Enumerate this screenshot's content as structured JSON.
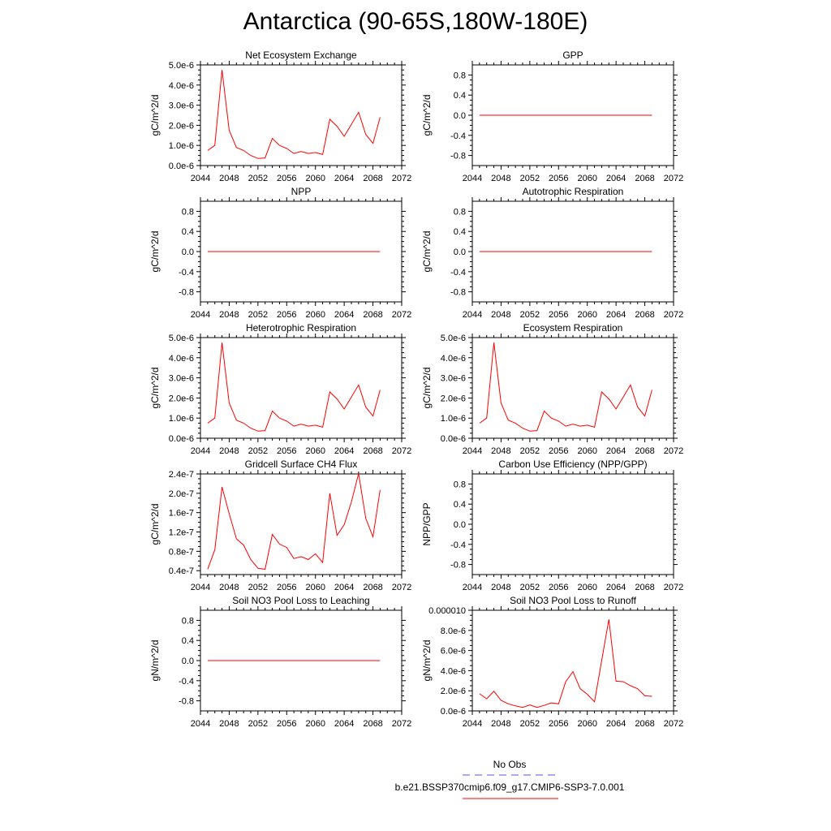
{
  "figure": {
    "title": "Antarctica (90-65S,180W-180E)",
    "legend": {
      "entries": [
        {
          "label": "No Obs",
          "color": "#5a5ad8",
          "style": "dashed"
        },
        {
          "label": "b.e21.BSSP370cmip6.f09_g17.CMIP6-SSP3-7.0.001",
          "color": "#ff0000",
          "style": "solid"
        }
      ]
    },
    "line_color": "#ff0000"
  },
  "chart_data": [
    {
      "type": "line",
      "title": "Net Ecosystem Exchange",
      "ylabel": "gC/m^2/d",
      "xlim": [
        2044,
        2072
      ],
      "xticks": [
        2044,
        2048,
        2052,
        2056,
        2060,
        2064,
        2068,
        2072
      ],
      "ylim": [
        0,
        5e-06
      ],
      "yticks": [
        0,
        1e-06,
        2e-06,
        3e-06,
        4e-06,
        5e-06
      ],
      "ytick_labels": [
        "0.0e-6",
        "1.0e-6",
        "2.0e-6",
        "3.0e-6",
        "4.0e-6",
        "5.0e-6"
      ],
      "x": [
        2045,
        2046,
        2047,
        2048,
        2049,
        2050,
        2051,
        2052,
        2053,
        2054,
        2055,
        2056,
        2057,
        2058,
        2059,
        2060,
        2061,
        2062,
        2063,
        2064,
        2065,
        2066,
        2067,
        2068,
        2069
      ],
      "series": [
        {
          "values": [
            7.5e-07,
            1e-06,
            4.75e-06,
            1.75e-06,
            9e-07,
            7.5e-07,
            5e-07,
            3.5e-07,
            3.8e-07,
            1.35e-06,
            1e-06,
            8.5e-07,
            6e-07,
            7e-07,
            6e-07,
            6.5e-07,
            5.5e-07,
            2.3e-06,
            1.95e-06,
            1.45e-06,
            2.05e-06,
            2.65e-06,
            1.55e-06,
            1.1e-06,
            2.4e-06
          ]
        }
      ]
    },
    {
      "type": "line",
      "title": "GPP",
      "ylabel": "gC/m^2/d",
      "xlim": [
        2044,
        2072
      ],
      "xticks": [
        2044,
        2048,
        2052,
        2056,
        2060,
        2064,
        2068,
        2072
      ],
      "ylim": [
        -1.0,
        1.0
      ],
      "yticks": [
        -0.8,
        -0.4,
        0.0,
        0.4,
        0.8
      ],
      "ytick_labels": [
        "-0.8",
        "-0.4",
        "0.0",
        "0.4",
        "0.8"
      ],
      "x": [
        2045,
        2069
      ],
      "series": [
        {
          "values": [
            0,
            0
          ]
        }
      ]
    },
    {
      "type": "line",
      "title": "NPP",
      "ylabel": "gC/m^2/d",
      "xlim": [
        2044,
        2072
      ],
      "xticks": [
        2044,
        2048,
        2052,
        2056,
        2060,
        2064,
        2068,
        2072
      ],
      "ylim": [
        -1.0,
        1.0
      ],
      "yticks": [
        -0.8,
        -0.4,
        0.0,
        0.4,
        0.8
      ],
      "ytick_labels": [
        "-0.8",
        "-0.4",
        "0.0",
        "0.4",
        "0.8"
      ],
      "x": [
        2045,
        2069
      ],
      "series": [
        {
          "values": [
            0,
            0
          ]
        }
      ]
    },
    {
      "type": "line",
      "title": "Autotrophic Respiration",
      "ylabel": "gC/m^2/d",
      "xlim": [
        2044,
        2072
      ],
      "xticks": [
        2044,
        2048,
        2052,
        2056,
        2060,
        2064,
        2068,
        2072
      ],
      "ylim": [
        -1.0,
        1.0
      ],
      "yticks": [
        -0.8,
        -0.4,
        0.0,
        0.4,
        0.8
      ],
      "ytick_labels": [
        "-0.8",
        "-0.4",
        "0.0",
        "0.4",
        "0.8"
      ],
      "x": [
        2045,
        2069
      ],
      "series": [
        {
          "values": [
            0,
            0
          ]
        }
      ]
    },
    {
      "type": "line",
      "title": "Heterotrophic Respiration",
      "ylabel": "gC/m^2/d",
      "xlim": [
        2044,
        2072
      ],
      "xticks": [
        2044,
        2048,
        2052,
        2056,
        2060,
        2064,
        2068,
        2072
      ],
      "ylim": [
        0,
        5e-06
      ],
      "yticks": [
        0,
        1e-06,
        2e-06,
        3e-06,
        4e-06,
        5e-06
      ],
      "ytick_labels": [
        "0.0e-6",
        "1.0e-6",
        "2.0e-6",
        "3.0e-6",
        "4.0e-6",
        "5.0e-6"
      ],
      "x": [
        2045,
        2046,
        2047,
        2048,
        2049,
        2050,
        2051,
        2052,
        2053,
        2054,
        2055,
        2056,
        2057,
        2058,
        2059,
        2060,
        2061,
        2062,
        2063,
        2064,
        2065,
        2066,
        2067,
        2068,
        2069
      ],
      "series": [
        {
          "values": [
            7.5e-07,
            1e-06,
            4.75e-06,
            1.75e-06,
            9e-07,
            7.5e-07,
            5e-07,
            3.5e-07,
            3.8e-07,
            1.35e-06,
            1e-06,
            8.5e-07,
            6e-07,
            7e-07,
            6e-07,
            6.5e-07,
            5.5e-07,
            2.3e-06,
            1.95e-06,
            1.45e-06,
            2.05e-06,
            2.65e-06,
            1.55e-06,
            1.1e-06,
            2.4e-06
          ]
        }
      ]
    },
    {
      "type": "line",
      "title": "Ecosystem Respiration",
      "ylabel": "gC/m^2/d",
      "xlim": [
        2044,
        2072
      ],
      "xticks": [
        2044,
        2048,
        2052,
        2056,
        2060,
        2064,
        2068,
        2072
      ],
      "ylim": [
        0,
        5e-06
      ],
      "yticks": [
        0,
        1e-06,
        2e-06,
        3e-06,
        4e-06,
        5e-06
      ],
      "ytick_labels": [
        "0.0e-6",
        "1.0e-6",
        "2.0e-6",
        "3.0e-6",
        "4.0e-6",
        "5.0e-6"
      ],
      "x": [
        2045,
        2046,
        2047,
        2048,
        2049,
        2050,
        2051,
        2052,
        2053,
        2054,
        2055,
        2056,
        2057,
        2058,
        2059,
        2060,
        2061,
        2062,
        2063,
        2064,
        2065,
        2066,
        2067,
        2068,
        2069
      ],
      "series": [
        {
          "values": [
            7.5e-07,
            1e-06,
            4.75e-06,
            1.75e-06,
            9e-07,
            7.5e-07,
            5e-07,
            3.5e-07,
            3.8e-07,
            1.35e-06,
            1e-06,
            8.5e-07,
            6e-07,
            7e-07,
            6e-07,
            6.5e-07,
            5.5e-07,
            2.3e-06,
            1.95e-06,
            1.45e-06,
            2.05e-06,
            2.65e-06,
            1.55e-06,
            1.1e-06,
            2.4e-06
          ]
        }
      ]
    },
    {
      "type": "line",
      "title": "Gridcell Surface CH4 Flux",
      "ylabel": "gC/m^2/d",
      "xlim": [
        2044,
        2072
      ],
      "xticks": [
        2044,
        2048,
        2052,
        2056,
        2060,
        2064,
        2068,
        2072
      ],
      "ylim": [
        3.2e-08,
        2.4e-07
      ],
      "yticks": [
        4e-08,
        8e-08,
        1.2e-07,
        1.6e-07,
        2e-07,
        2.4e-07
      ],
      "ytick_labels": [
        "0.4e-7",
        "0.8e-7",
        "1.2e-7",
        "1.6e-7",
        "2.0e-7",
        "2.4e-7"
      ],
      "x": [
        2045,
        2046,
        2047,
        2048,
        2049,
        2050,
        2051,
        2052,
        2053,
        2054,
        2055,
        2056,
        2057,
        2058,
        2059,
        2060,
        2061,
        2062,
        2063,
        2064,
        2065,
        2066,
        2067,
        2068,
        2069
      ],
      "series": [
        {
          "values": [
            4.3e-08,
            8.3e-08,
            2.13e-07,
            1.58e-07,
            1.06e-07,
            9.3e-08,
            6.3e-08,
            4.5e-08,
            4.3e-08,
            1.15e-07,
            9.5e-08,
            8.8e-08,
            6.5e-08,
            6.9e-08,
            6.3e-08,
            7.5e-08,
            5.7e-08,
            2e-07,
            1.13e-07,
            1.35e-07,
            1.82e-07,
            2.41e-07,
            1.48e-07,
            1.1e-07,
            2.07e-07
          ]
        }
      ]
    },
    {
      "type": "line",
      "title": "Carbon Use Efficiency (NPP/GPP)",
      "ylabel": "NPP/GPP",
      "xlim": [
        2044,
        2072
      ],
      "xticks": [
        2044,
        2048,
        2052,
        2056,
        2060,
        2064,
        2068,
        2072
      ],
      "ylim": [
        -1.0,
        1.0
      ],
      "yticks": [
        -0.8,
        -0.4,
        0.0,
        0.4,
        0.8
      ],
      "ytick_labels": [
        "-0.8",
        "-0.4",
        "0.0",
        "0.4",
        "0.8"
      ],
      "x": [],
      "series": [
        {
          "values": []
        }
      ]
    },
    {
      "type": "line",
      "title": "Soil NO3 Pool Loss to Leaching",
      "ylabel": "gN/m^2/d",
      "xlim": [
        2044,
        2072
      ],
      "xticks": [
        2044,
        2048,
        2052,
        2056,
        2060,
        2064,
        2068,
        2072
      ],
      "ylim": [
        -1.0,
        1.0
      ],
      "yticks": [
        -0.8,
        -0.4,
        0.0,
        0.4,
        0.8
      ],
      "ytick_labels": [
        "-0.8",
        "-0.4",
        "0.0",
        "0.4",
        "0.8"
      ],
      "x": [
        2045,
        2069
      ],
      "series": [
        {
          "values": [
            0,
            0
          ]
        }
      ]
    },
    {
      "type": "line",
      "title": "Soil NO3 Pool Loss to Runoff",
      "ylabel": "gN/m^2/d",
      "xlim": [
        2044,
        2072
      ],
      "xticks": [
        2044,
        2048,
        2052,
        2056,
        2060,
        2064,
        2068,
        2072
      ],
      "ylim": [
        0,
        1e-05
      ],
      "yticks": [
        0,
        2e-06,
        4e-06,
        6e-06,
        8e-06,
        1e-05
      ],
      "ytick_labels": [
        "0.0e-6",
        "2.0e-6",
        "4.0e-6",
        "6.0e-6",
        "8.0e-6",
        "0.000010"
      ],
      "x": [
        2045,
        2046,
        2047,
        2048,
        2049,
        2050,
        2051,
        2052,
        2053,
        2054,
        2055,
        2056,
        2057,
        2058,
        2059,
        2060,
        2061,
        2062,
        2063,
        2064,
        2065,
        2066,
        2067,
        2068,
        2069
      ],
      "series": [
        {
          "values": [
            1.7e-06,
            1.2e-06,
            1.95e-06,
            1.05e-06,
            7e-07,
            5e-07,
            3.5e-07,
            6e-07,
            3.5e-07,
            5.5e-07,
            8e-07,
            7e-07,
            2.9e-06,
            3.9e-06,
            2.2e-06,
            1.65e-06,
            9e-07,
            5e-06,
            9.1e-06,
            2.95e-06,
            2.9e-06,
            2.5e-06,
            2.2e-06,
            1.5e-06,
            1.45e-06
          ]
        }
      ]
    }
  ]
}
